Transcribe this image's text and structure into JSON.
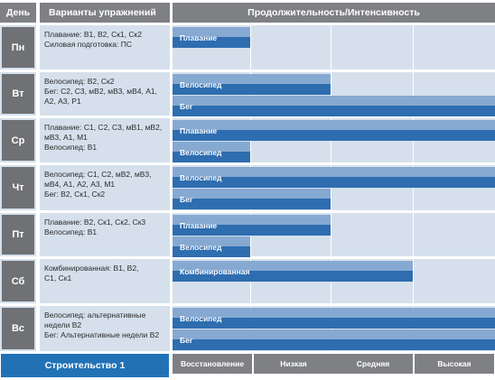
{
  "headers": {
    "day": "День",
    "exercises": "Варианты упражнений",
    "duration": "Продолжительность/Интенсивность"
  },
  "days": [
    {
      "day": "Пн",
      "exercises": "Плавание: В1, В2, Ск1, Ск2\nСиловая подготовка: ПС",
      "bars": [
        {
          "label": "Плавание",
          "intensity_zones": 1
        }
      ]
    },
    {
      "day": "Вт",
      "exercises": "Велосипед: В2, Ск2\nБег: С2, С3, мВ2, мВ3, мВ4, А1,\nА2, А3, Р1",
      "bars": [
        {
          "label": "Велосипед",
          "intensity_zones": 2
        },
        {
          "label": "Бег",
          "intensity_zones": 4
        }
      ]
    },
    {
      "day": "Ср",
      "exercises": "Плавание: С1, С2, С3, мВ1, мВ2,\nмВ3, А1, М1\nВелосипед: В1",
      "bars": [
        {
          "label": "Плавание",
          "intensity_zones": 4
        },
        {
          "label": "Велосипед",
          "intensity_zones": 1
        }
      ]
    },
    {
      "day": "Чт",
      "exercises": "Велосипед: С1, С2, мВ2, мВ3,\nмВ4, А1, А2, А3, М1\nБег: В2, Ск1, Ск2",
      "bars": [
        {
          "label": "Велосипед",
          "intensity_zones": 4
        },
        {
          "label": "Бег",
          "intensity_zones": 2
        }
      ]
    },
    {
      "day": "Пт",
      "exercises": "Плавание: В2, Ск1, Ск2, Ск3\nВелосипед: В1",
      "bars": [
        {
          "label": "Плавание",
          "intensity_zones": 2
        },
        {
          "label": "Велосипед",
          "intensity_zones": 1
        }
      ]
    },
    {
      "day": "Сб",
      "exercises": "Комбинированная: В1, В2,\nС1, Ск1",
      "bars": [
        {
          "label": "Комбинированная",
          "intensity_zones": 3
        }
      ]
    },
    {
      "day": "Вс",
      "exercises": "Велосипед: альтернативные\nнедели В2\nБег: Альтернативные недели В2",
      "bars": [
        {
          "label": "Велосипед",
          "intensity_zones": 4
        },
        {
          "label": "Бег",
          "intensity_zones": 4
        }
      ]
    }
  ],
  "footer": {
    "phase": "Строительство 1",
    "levels": [
      "Восстановление",
      "Низкая",
      "Средняя",
      "Высокая"
    ]
  },
  "colors": {
    "header_gray": "#7f8083",
    "day_box": "#6f7174",
    "cell_bg": "#d5e0ec",
    "bar_light": "#86a9d2",
    "bar_dark": "#2e6db0",
    "phase_blue": "#2172b5"
  }
}
